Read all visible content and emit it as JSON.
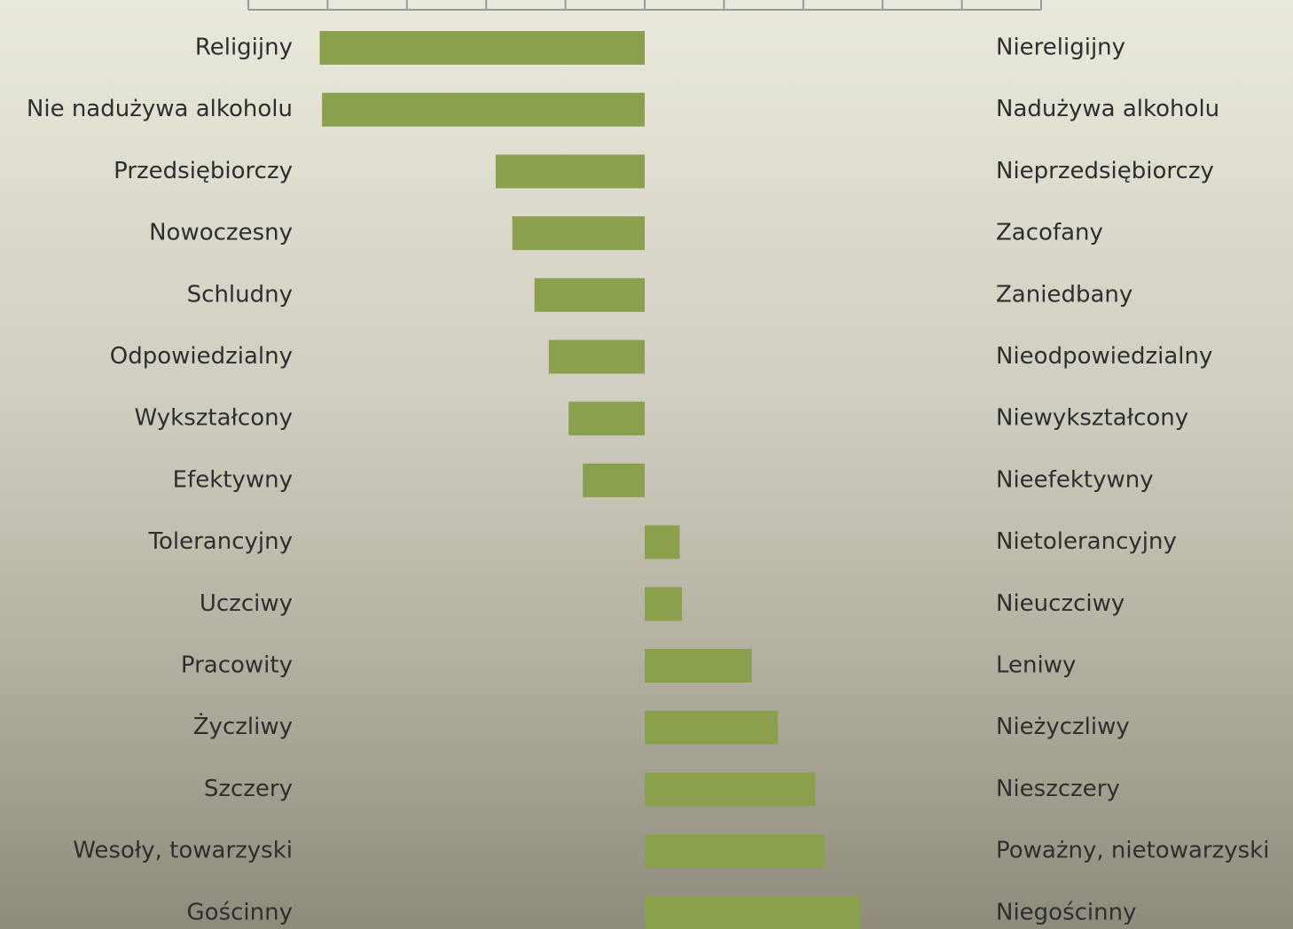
{
  "chart_data": {
    "type": "bar",
    "orientation": "horizontal",
    "categories": [
      "Religijny",
      "Nie nadużywa alkoholu",
      "Przedsiębiorczy",
      "Nowoczesny",
      "Schludny",
      "Odpowiedzialny",
      "Wykształcony",
      "Efektywny",
      "Tolerancyjny",
      "Uczciwy",
      "Pracowity",
      "Życzliwy",
      "Szczery",
      "Wesoły, towarzyski",
      "Gościnny"
    ],
    "right_labels": [
      "Niereligijny",
      "Nadużywa alkoholu",
      "Nieprzedsiębiorczy",
      "Zacofany",
      "Zaniedbany",
      "Nieodpowiedzialny",
      "Niewykształcony",
      "Nieefektywny",
      "Nietolerancyjny",
      "Nieuczciwy",
      "Leniwy",
      "Nieżyczliwy",
      "Nieszczery",
      "Poważny, nietowarzyski",
      "Niegościnny"
    ],
    "values": [
      -4.1,
      -4.07,
      -1.88,
      -1.67,
      -1.39,
      -1.21,
      -0.96,
      -0.78,
      0.44,
      0.47,
      1.35,
      1.68,
      2.15,
      2.27,
      2.72
    ],
    "color": "#8aa04d",
    "xlim": [
      -5,
      5
    ],
    "xticks": [
      -5,
      -4,
      -3,
      -2,
      -1,
      0,
      1,
      2,
      3,
      4,
      5
    ]
  }
}
